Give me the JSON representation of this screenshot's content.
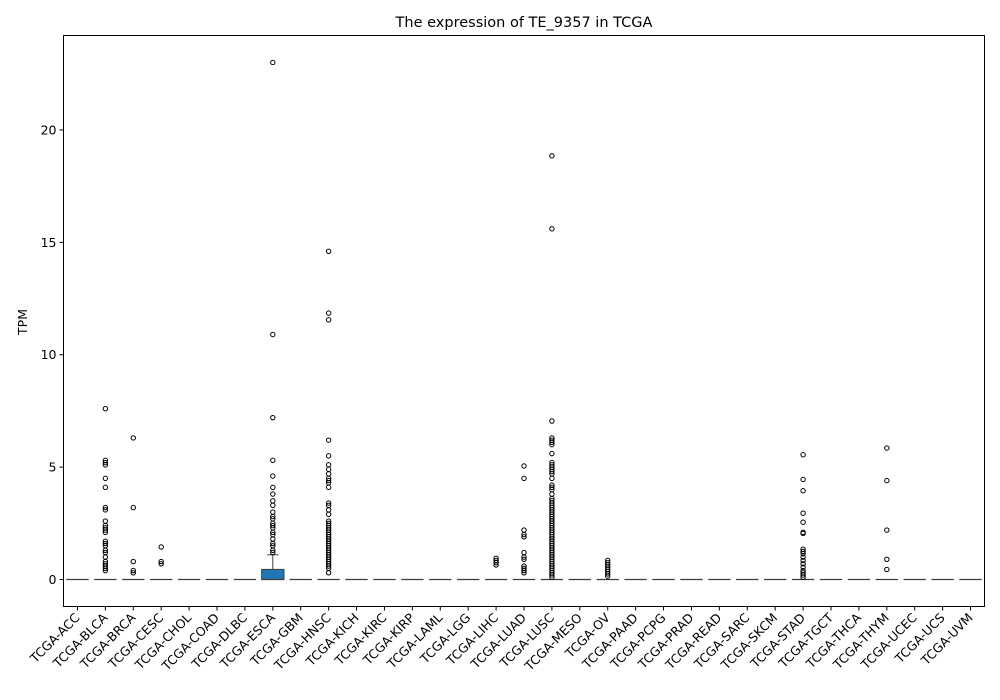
{
  "chart_data": {
    "type": "box",
    "title": "The expression of TE_9357 in TCGA",
    "xlabel": "",
    "ylabel": "TPM",
    "ylim": [
      -1.2,
      24.2
    ],
    "yticks": [
      0,
      5,
      10,
      15,
      20
    ],
    "box_color": "#1f77b4",
    "grid": false,
    "categories": [
      "TCGA-ACC",
      "TCGA-BLCA",
      "TCGA-BRCA",
      "TCGA-CESC",
      "TCGA-CHOL",
      "TCGA-COAD",
      "TCGA-DLBC",
      "TCGA-ESCA",
      "TCGA-GBM",
      "TCGA-HNSC",
      "TCGA-KICH",
      "TCGA-KIRC",
      "TCGA-KIRP",
      "TCGA-LAML",
      "TCGA-LGG",
      "TCGA-LIHC",
      "TCGA-LUAD",
      "TCGA-LUSC",
      "TCGA-MESO",
      "TCGA-OV",
      "TCGA-PAAD",
      "TCGA-PCPG",
      "TCGA-PRAD",
      "TCGA-READ",
      "TCGA-SARC",
      "TCGA-SKCM",
      "TCGA-STAD",
      "TCGA-TGCT",
      "TCGA-THCA",
      "TCGA-THYM",
      "TCGA-UCEC",
      "TCGA-UCS",
      "TCGA-UVM"
    ],
    "boxes": [
      {
        "q1": 0,
        "median": 0,
        "q3": 0,
        "whisker_low": 0,
        "whisker_high": 0,
        "outliers": []
      },
      {
        "q1": 0,
        "median": 0,
        "q3": 0,
        "whisker_low": 0,
        "whisker_high": 0,
        "outliers": [
          7.6,
          5.3,
          5.2,
          5.1,
          4.5,
          4.1,
          3.2,
          3.1,
          2.6,
          2.4,
          2.3,
          2.2,
          2.1,
          1.7,
          1.6,
          1.5,
          1.3,
          1.2,
          1.0,
          0.8,
          0.7,
          0.6,
          0.5,
          0.4
        ]
      },
      {
        "q1": 0,
        "median": 0,
        "q3": 0,
        "whisker_low": 0,
        "whisker_high": 0,
        "outliers": [
          6.3,
          3.2,
          0.8,
          0.4,
          0.3
        ]
      },
      {
        "q1": 0,
        "median": 0,
        "q3": 0,
        "whisker_low": 0,
        "whisker_high": 0,
        "outliers": [
          1.45,
          0.8,
          0.7
        ]
      },
      {
        "q1": 0,
        "median": 0,
        "q3": 0,
        "whisker_low": 0,
        "whisker_high": 0,
        "outliers": []
      },
      {
        "q1": 0,
        "median": 0,
        "q3": 0,
        "whisker_low": 0,
        "whisker_high": 0,
        "outliers": []
      },
      {
        "q1": 0,
        "median": 0,
        "q3": 0,
        "whisker_low": 0,
        "whisker_high": 0,
        "outliers": []
      },
      {
        "q1": 0,
        "median": 0,
        "q3": 0.45,
        "whisker_low": 0,
        "whisker_high": 1.1,
        "outliers": [
          23.0,
          10.9,
          7.2,
          5.3,
          4.6,
          4.1,
          3.8,
          3.5,
          3.3,
          3.0,
          2.8,
          2.7,
          2.5,
          2.4,
          2.3,
          2.1,
          2.0,
          1.8,
          1.6,
          1.5,
          1.3,
          1.2
        ]
      },
      {
        "q1": 0,
        "median": 0,
        "q3": 0,
        "whisker_low": 0,
        "whisker_high": 0,
        "outliers": []
      },
      {
        "q1": 0,
        "median": 0,
        "q3": 0,
        "whisker_low": 0,
        "whisker_high": 0,
        "outliers": [
          14.6,
          11.85,
          11.55,
          6.2,
          5.5,
          5.1,
          4.9,
          4.7,
          4.5,
          4.4,
          4.3,
          4.1,
          3.4,
          3.3,
          3.1,
          2.9,
          2.6,
          2.5,
          2.4,
          2.3,
          2.2,
          2.1,
          2.0,
          1.9,
          1.8,
          1.7,
          1.6,
          1.5,
          1.4,
          1.3,
          1.2,
          1.1,
          1.0,
          0.9,
          0.8,
          0.7,
          0.6,
          0.5,
          0.3
        ]
      },
      {
        "q1": 0,
        "median": 0,
        "q3": 0,
        "whisker_low": 0,
        "whisker_high": 0,
        "outliers": []
      },
      {
        "q1": 0,
        "median": 0,
        "q3": 0,
        "whisker_low": 0,
        "whisker_high": 0,
        "outliers": []
      },
      {
        "q1": 0,
        "median": 0,
        "q3": 0,
        "whisker_low": 0,
        "whisker_high": 0,
        "outliers": []
      },
      {
        "q1": 0,
        "median": 0,
        "q3": 0,
        "whisker_low": 0,
        "whisker_high": 0,
        "outliers": []
      },
      {
        "q1": 0,
        "median": 0,
        "q3": 0,
        "whisker_low": 0,
        "whisker_high": 0,
        "outliers": []
      },
      {
        "q1": 0,
        "median": 0,
        "q3": 0,
        "whisker_low": 0,
        "whisker_high": 0,
        "outliers": [
          0.95,
          0.85,
          0.75,
          0.65
        ]
      },
      {
        "q1": 0,
        "median": 0,
        "q3": 0,
        "whisker_low": 0,
        "whisker_high": 0,
        "outliers": [
          5.05,
          4.5,
          2.2,
          2.0,
          1.9,
          1.2,
          1.0,
          0.9,
          0.6,
          0.5,
          0.4,
          0.3
        ]
      },
      {
        "q1": 0,
        "median": 0,
        "q3": 0,
        "whisker_low": 0,
        "whisker_high": 0,
        "outliers": [
          18.85,
          15.6,
          7.05,
          6.3,
          6.2,
          6.1,
          6.0,
          5.6,
          5.2,
          5.1,
          5.0,
          4.9,
          4.8,
          4.7,
          4.5,
          4.2,
          4.1,
          4.0,
          3.8,
          3.6,
          3.5,
          3.4,
          3.3,
          3.2,
          3.1,
          3.0,
          2.9,
          2.8,
          2.7,
          2.6,
          2.5,
          2.4,
          2.3,
          2.2,
          2.1,
          2.0,
          1.9,
          1.8,
          1.7,
          1.6,
          1.5,
          1.4,
          1.3,
          1.2,
          1.1,
          1.0,
          0.9,
          0.8,
          0.7,
          0.6,
          0.5,
          0.4,
          0.3,
          0.2,
          0.1
        ]
      },
      {
        "q1": 0,
        "median": 0,
        "q3": 0,
        "whisker_low": 0,
        "whisker_high": 0,
        "outliers": []
      },
      {
        "q1": 0,
        "median": 0,
        "q3": 0,
        "whisker_low": 0,
        "whisker_high": 0,
        "outliers": [
          0.85,
          0.75,
          0.65,
          0.55,
          0.45,
          0.35,
          0.25,
          0.15
        ]
      },
      {
        "q1": 0,
        "median": 0,
        "q3": 0,
        "whisker_low": 0,
        "whisker_high": 0,
        "outliers": []
      },
      {
        "q1": 0,
        "median": 0,
        "q3": 0,
        "whisker_low": 0,
        "whisker_high": 0,
        "outliers": []
      },
      {
        "q1": 0,
        "median": 0,
        "q3": 0,
        "whisker_low": 0,
        "whisker_high": 0,
        "outliers": []
      },
      {
        "q1": 0,
        "median": 0,
        "q3": 0,
        "whisker_low": 0,
        "whisker_high": 0,
        "outliers": []
      },
      {
        "q1": 0,
        "median": 0,
        "q3": 0,
        "whisker_low": 0,
        "whisker_high": 0,
        "outliers": []
      },
      {
        "q1": 0,
        "median": 0,
        "q3": 0,
        "whisker_low": 0,
        "whisker_high": 0,
        "outliers": []
      },
      {
        "q1": 0,
        "median": 0,
        "q3": 0,
        "whisker_low": 0,
        "whisker_high": 0,
        "outliers": [
          5.55,
          4.45,
          3.95,
          2.95,
          2.55,
          2.1,
          2.05,
          1.35,
          1.25,
          1.15,
          1.0,
          0.85,
          0.7,
          0.55,
          0.4,
          0.3,
          0.2,
          0.1
        ]
      },
      {
        "q1": 0,
        "median": 0,
        "q3": 0,
        "whisker_low": 0,
        "whisker_high": 0,
        "outliers": []
      },
      {
        "q1": 0,
        "median": 0,
        "q3": 0,
        "whisker_low": 0,
        "whisker_high": 0,
        "outliers": []
      },
      {
        "q1": 0,
        "median": 0,
        "q3": 0,
        "whisker_low": 0,
        "whisker_high": 0,
        "outliers": [
          5.85,
          4.4,
          2.2,
          0.9,
          0.45
        ]
      },
      {
        "q1": 0,
        "median": 0,
        "q3": 0,
        "whisker_low": 0,
        "whisker_high": 0,
        "outliers": []
      },
      {
        "q1": 0,
        "median": 0,
        "q3": 0,
        "whisker_low": 0,
        "whisker_high": 0,
        "outliers": []
      },
      {
        "q1": 0,
        "median": 0,
        "q3": 0,
        "whisker_low": 0,
        "whisker_high": 0,
        "outliers": []
      }
    ]
  }
}
